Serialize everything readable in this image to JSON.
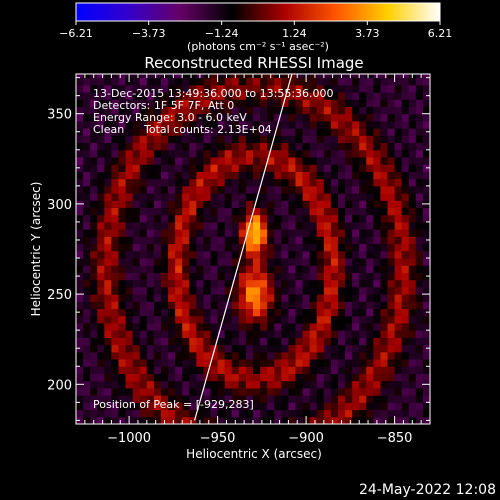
{
  "chart_data": {
    "type": "heatmap",
    "title": "Reconstructed RHESSI Image",
    "xlabel": "Heliocentric X (arcsec)",
    "ylabel": "Heliocentric Y (arcsec)",
    "xlim": [
      -1030,
      -830
    ],
    "ylim": [
      178,
      372
    ],
    "x_ticks": [
      -1000,
      -950,
      -900,
      -850
    ],
    "x_tick_labels": [
      "−1000",
      "−950",
      "−900",
      "−850"
    ],
    "y_ticks": [
      200,
      250,
      300,
      350
    ],
    "y_tick_labels": [
      "200",
      "250",
      "300",
      "350"
    ],
    "colorbar": {
      "min": -6.21,
      "max": 6.21,
      "tick_values": [
        -6.21,
        -3.73,
        -1.24,
        1.24,
        3.73,
        6.21
      ],
      "tick_labels": [
        "−6.21",
        "−3.73",
        "−1.24",
        "1.24",
        "3.73",
        "6.21"
      ],
      "unit_label": "(photons cm⁻² s⁻¹ asec⁻²)",
      "colors": [
        "#0000ff",
        "#3300cc",
        "#660066",
        "#000000",
        "#aa0000",
        "#ff5500",
        "#ffd000",
        "#ffffff"
      ]
    },
    "annotations": {
      "time_range": "13-Dec-2015 13:49:36.000 to 13:55:36.000",
      "detectors": "Detectors: 1F 5F 7F, Att 0",
      "energy": "Energy Range: 3.0 - 6.0 keV",
      "clean_label": "Clean",
      "total_counts": "Total counts: 2.13E+04",
      "peak": "Position of Peak = [-929,283]"
    },
    "peak": {
      "x": -929,
      "y": 283
    },
    "sources": [
      {
        "x": -929,
        "y": 284,
        "sx": 5,
        "sy": 9,
        "amp": 6.2
      },
      {
        "x": -929,
        "y": 250,
        "sx": 7,
        "sy": 11,
        "amp": 5.0
      }
    ],
    "rings": [
      {
        "rx": 44,
        "ry": 62,
        "width": 5,
        "amp": 3.2
      },
      {
        "rx": 84,
        "ry": 100,
        "width": 6,
        "amp": 2.6
      }
    ],
    "limb_line": [
      [
        -963,
        180
      ],
      [
        -908,
        372
      ]
    ]
  },
  "footer": {
    "date": "24-May-2022 12:08"
  }
}
